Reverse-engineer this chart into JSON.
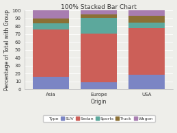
{
  "title": "100% Stacked Bar Chart",
  "xlabel": "Origin",
  "ylabel": "Percentage of Total with Group",
  "categories": [
    "Asia",
    "Europe",
    "USA"
  ],
  "series": {
    "SUV": [
      16,
      9,
      18
    ],
    "Sedan": [
      60,
      62,
      60
    ],
    "Sports": [
      8,
      20,
      7
    ],
    "Truck": [
      6,
      4,
      8
    ],
    "Wagon": [
      10,
      5,
      7
    ]
  },
  "colors": {
    "SUV": "#7b85c4",
    "Sedan": "#cc5f58",
    "Sports": "#5ca89c",
    "Truck": "#8b7035",
    "Wagon": "#a87db0"
  },
  "ylim": [
    0,
    100
  ],
  "yticks": [
    0,
    10,
    20,
    30,
    40,
    50,
    60,
    70,
    80,
    90,
    100
  ],
  "background_color": "#eeeeea",
  "plot_bg_color": "#eeeeea",
  "bar_width": 0.75,
  "title_fontsize": 6.5,
  "axis_label_fontsize": 5.5,
  "tick_fontsize": 5,
  "legend_fontsize": 4.5
}
